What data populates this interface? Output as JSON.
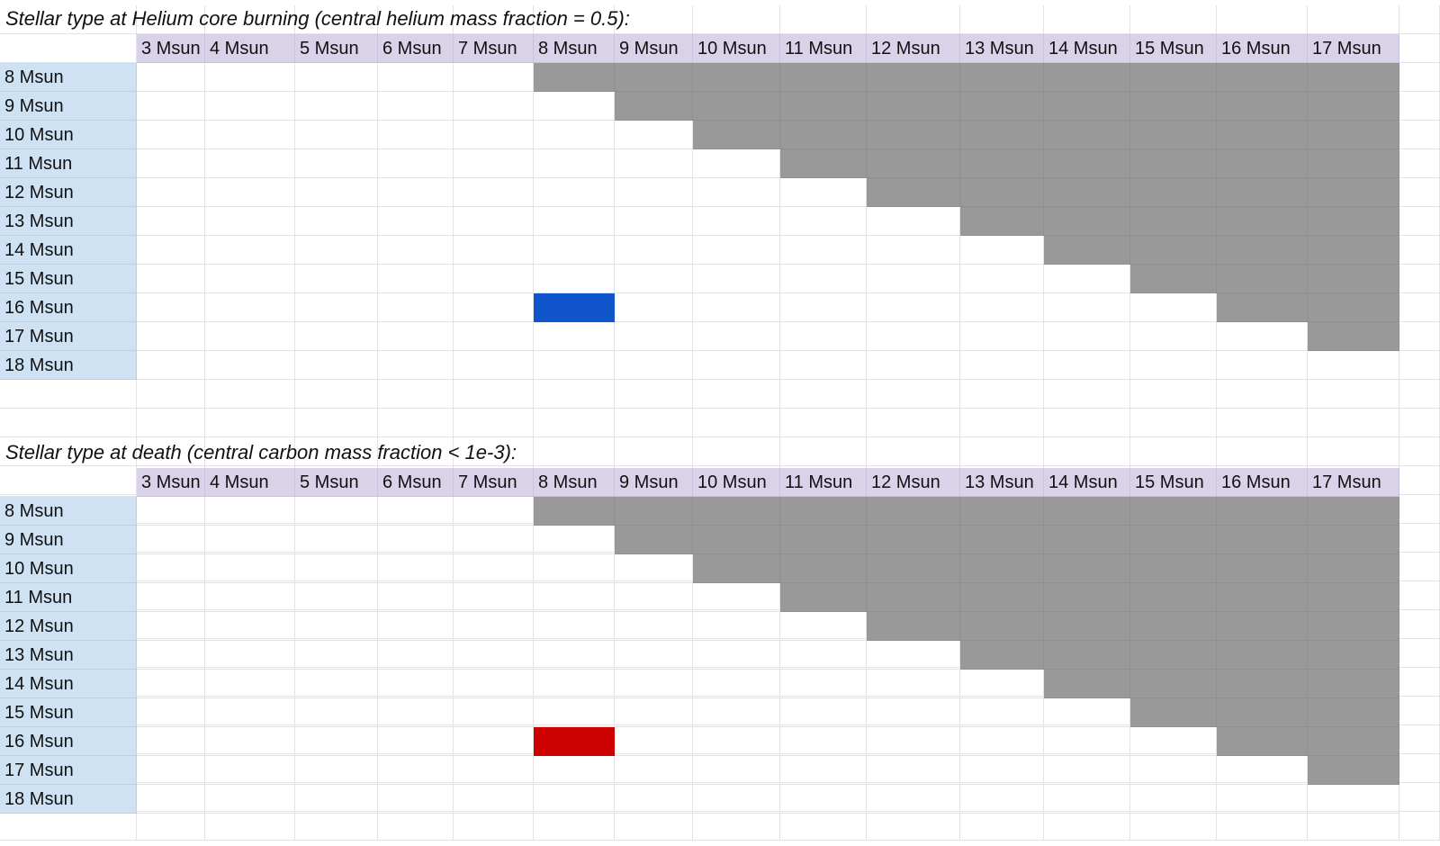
{
  "sections": [
    {
      "title": "Stellar type at Helium core burning (central helium mass fraction = 0.5):",
      "column_headers": [
        "3 Msun",
        "4 Msun",
        "5 Msun",
        "6 Msun",
        "7 Msun",
        "8 Msun",
        "9 Msun",
        "10 Msun",
        "11 Msun",
        "12 Msun",
        "13 Msun",
        "14 Msun",
        "15 Msun",
        "16 Msun",
        "17 Msun"
      ],
      "row_headers": [
        "8 Msun",
        "9 Msun",
        "10 Msun",
        "11 Msun",
        "12 Msun",
        "13 Msun",
        "14 Msun",
        "15 Msun",
        "16 Msun",
        "17 Msun",
        "18 Msun"
      ],
      "grey_from_column": [
        5,
        6,
        7,
        8,
        9,
        10,
        11,
        12,
        13,
        14,
        15
      ],
      "highlight": {
        "row": 8,
        "col": 5,
        "color": "#1155cc"
      }
    },
    {
      "title": "Stellar type at death (central carbon mass fraction < 1e-3):",
      "column_headers": [
        "3 Msun",
        "4 Msun",
        "5 Msun",
        "6 Msun",
        "7 Msun",
        "8 Msun",
        "9 Msun",
        "10 Msun",
        "11 Msun",
        "12 Msun",
        "13 Msun",
        "14 Msun",
        "15 Msun",
        "16 Msun",
        "17 Msun"
      ],
      "row_headers": [
        "8 Msun",
        "9 Msun",
        "10 Msun",
        "11 Msun",
        "12 Msun",
        "13 Msun",
        "14 Msun",
        "15 Msun",
        "16 Msun",
        "17 Msun",
        "18 Msun"
      ],
      "grey_from_column": [
        5,
        6,
        7,
        8,
        9,
        10,
        11,
        12,
        13,
        14,
        15
      ],
      "highlight": {
        "row": 8,
        "col": 5,
        "color": "#cc0000"
      }
    }
  ],
  "colors": {
    "column_header_bg": "#d9d2e9",
    "row_header_bg": "#cfe2f3",
    "filled_cell_bg": "#999999",
    "gridline": "#e2e3e3"
  }
}
